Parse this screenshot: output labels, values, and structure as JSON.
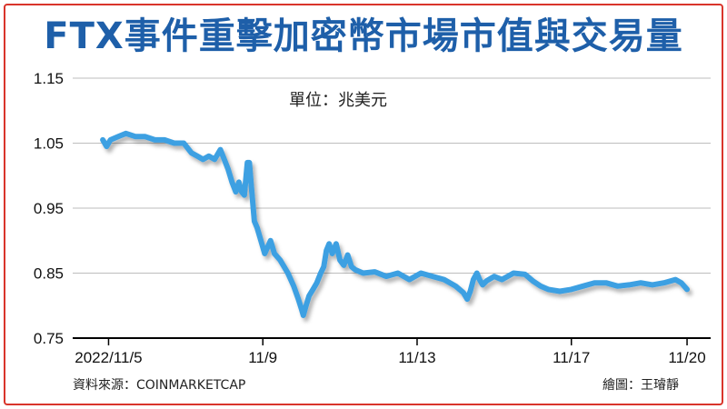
{
  "title": "FTX事件重擊加密幣市場市值與交易量",
  "unit_label": "單位：兆美元",
  "source": "資料來源：COINMARKETCAP",
  "credit": "繪圖：王璿靜",
  "colors": {
    "line": "#3ea0e2",
    "title": "#1e5fa9",
    "frame": "#d9352b"
  },
  "chart_data": {
    "type": "line",
    "title": "FTX事件重擊加密幣市場市值與交易量",
    "ylabel": "單位：兆美元",
    "ylim": [
      0.75,
      1.15
    ],
    "yticks": [
      1.15,
      1.05,
      0.95,
      0.85,
      0.75
    ],
    "ytick_labels": [
      "1.15",
      "1.05",
      "0.95",
      "0.85",
      "0.75"
    ],
    "xticks": [
      {
        "day": 5,
        "label": "2022/11/5"
      },
      {
        "day": 9,
        "label": "11/9"
      },
      {
        "day": 13,
        "label": "11/13"
      },
      {
        "day": 17,
        "label": "11/17"
      },
      {
        "day": 20,
        "label": "11/20"
      }
    ],
    "grid": true,
    "series": [
      {
        "values": [
          [
            4.85,
            1.055
          ],
          [
            4.95,
            1.045
          ],
          [
            5.05,
            1.055
          ],
          [
            5.25,
            1.06
          ],
          [
            5.45,
            1.065
          ],
          [
            5.7,
            1.06
          ],
          [
            5.95,
            1.06
          ],
          [
            6.2,
            1.055
          ],
          [
            6.45,
            1.055
          ],
          [
            6.7,
            1.05
          ],
          [
            6.95,
            1.05
          ],
          [
            7.15,
            1.035
          ],
          [
            7.3,
            1.03
          ],
          [
            7.45,
            1.025
          ],
          [
            7.6,
            1.03
          ],
          [
            7.75,
            1.025
          ],
          [
            7.9,
            1.04
          ],
          [
            8.0,
            1.025
          ],
          [
            8.1,
            1.01
          ],
          [
            8.2,
            0.99
          ],
          [
            8.3,
            0.975
          ],
          [
            8.38,
            0.99
          ],
          [
            8.45,
            0.975
          ],
          [
            8.52,
            0.97
          ],
          [
            8.6,
            1.02
          ],
          [
            8.65,
            1.02
          ],
          [
            8.7,
            0.985
          ],
          [
            8.78,
            0.93
          ],
          [
            8.85,
            0.92
          ],
          [
            8.95,
            0.9
          ],
          [
            9.05,
            0.88
          ],
          [
            9.2,
            0.9
          ],
          [
            9.3,
            0.88
          ],
          [
            9.45,
            0.87
          ],
          [
            9.55,
            0.86
          ],
          [
            9.65,
            0.85
          ],
          [
            9.8,
            0.83
          ],
          [
            9.92,
            0.81
          ],
          [
            10.0,
            0.795
          ],
          [
            10.05,
            0.785
          ],
          [
            10.12,
            0.8
          ],
          [
            10.2,
            0.815
          ],
          [
            10.3,
            0.825
          ],
          [
            10.4,
            0.835
          ],
          [
            10.5,
            0.85
          ],
          [
            10.58,
            0.86
          ],
          [
            10.65,
            0.885
          ],
          [
            10.72,
            0.895
          ],
          [
            10.8,
            0.88
          ],
          [
            10.9,
            0.895
          ],
          [
            11.0,
            0.87
          ],
          [
            11.1,
            0.862
          ],
          [
            11.2,
            0.878
          ],
          [
            11.3,
            0.86
          ],
          [
            11.4,
            0.855
          ],
          [
            11.6,
            0.85
          ],
          [
            11.9,
            0.852
          ],
          [
            12.2,
            0.845
          ],
          [
            12.5,
            0.85
          ],
          [
            12.8,
            0.84
          ],
          [
            13.1,
            0.85
          ],
          [
            13.4,
            0.845
          ],
          [
            13.7,
            0.84
          ],
          [
            14.0,
            0.83
          ],
          [
            14.2,
            0.82
          ],
          [
            14.3,
            0.81
          ],
          [
            14.38,
            0.822
          ],
          [
            14.46,
            0.84
          ],
          [
            14.55,
            0.85
          ],
          [
            14.62,
            0.84
          ],
          [
            14.7,
            0.832
          ],
          [
            14.8,
            0.838
          ],
          [
            15.0,
            0.845
          ],
          [
            15.2,
            0.84
          ],
          [
            15.5,
            0.85
          ],
          [
            15.8,
            0.848
          ],
          [
            16.0,
            0.838
          ],
          [
            16.2,
            0.83
          ],
          [
            16.4,
            0.825
          ],
          [
            16.7,
            0.822
          ],
          [
            17.0,
            0.825
          ],
          [
            17.3,
            0.83
          ],
          [
            17.6,
            0.835
          ],
          [
            17.9,
            0.835
          ],
          [
            18.2,
            0.83
          ],
          [
            18.5,
            0.832
          ],
          [
            18.8,
            0.835
          ],
          [
            19.1,
            0.832
          ],
          [
            19.4,
            0.835
          ],
          [
            19.7,
            0.84
          ],
          [
            19.85,
            0.835
          ],
          [
            20.0,
            0.825
          ]
        ]
      }
    ]
  }
}
